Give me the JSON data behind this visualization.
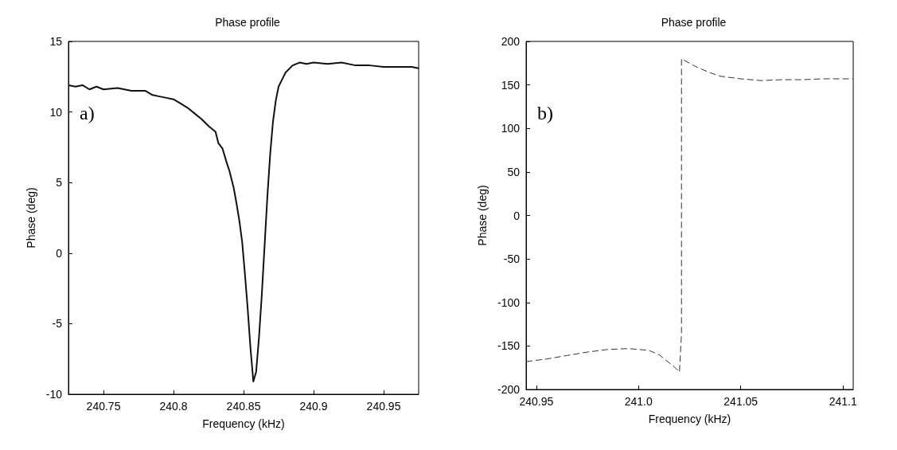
{
  "chart_data": [
    {
      "type": "line",
      "title": "Phase profile",
      "xlabel": "Frequency (kHz)",
      "ylabel": "Phase (deg)",
      "annotations": [
        "a)"
      ],
      "marker": "none",
      "line_style": "solid",
      "xlim": [
        240.725,
        240.975
      ],
      "xticks": [
        240.75,
        240.8,
        240.85,
        240.9,
        240.95
      ],
      "ylim": [
        -10,
        15
      ],
      "yticks": [
        -10,
        -5,
        0,
        5,
        10,
        15
      ],
      "series": [
        {
          "color": "#111111",
          "x": [
            240.725,
            240.73,
            240.735,
            240.74,
            240.745,
            240.75,
            240.76,
            240.77,
            240.78,
            240.785,
            240.79,
            240.795,
            240.8,
            240.805,
            240.81,
            240.815,
            240.82,
            240.825,
            240.83,
            240.832,
            240.835,
            240.838,
            240.84,
            240.843,
            240.845,
            240.847,
            240.849,
            240.851,
            240.853,
            240.855,
            240.857,
            240.859,
            240.861,
            240.863,
            240.865,
            240.867,
            240.869,
            240.871,
            240.873,
            240.875,
            240.878,
            240.88,
            240.885,
            240.89,
            240.895,
            240.9,
            240.91,
            240.92,
            240.93,
            240.94,
            240.95,
            240.96,
            240.97,
            240.975
          ],
          "values": [
            11.9,
            11.8,
            11.9,
            11.6,
            11.8,
            11.6,
            11.7,
            11.5,
            11.5,
            11.2,
            11.1,
            11.0,
            10.9,
            10.6,
            10.3,
            9.9,
            9.5,
            9.0,
            8.6,
            7.8,
            7.4,
            6.4,
            5.8,
            4.6,
            3.5,
            2.3,
            0.8,
            -1.5,
            -4.0,
            -6.8,
            -9.1,
            -8.4,
            -6.0,
            -3.0,
            0.5,
            4.0,
            7.0,
            9.3,
            10.8,
            11.8,
            12.4,
            12.8,
            13.3,
            13.5,
            13.4,
            13.5,
            13.4,
            13.5,
            13.3,
            13.3,
            13.2,
            13.2,
            13.2,
            13.1
          ]
        }
      ]
    },
    {
      "type": "line",
      "title": "Phase profile",
      "xlabel": "Frequency (kHz)",
      "ylabel": "Phase (deg)",
      "annotations": [
        "b)"
      ],
      "marker": "none",
      "line_style": "dashed",
      "xlim": [
        240.945,
        241.105
      ],
      "xticks": [
        240.95,
        {
          "value": 241,
          "label": "241.0"
        },
        241.05,
        241.1
      ],
      "ylim": [
        -200,
        200
      ],
      "yticks": [
        -200,
        -150,
        -100,
        -50,
        0,
        50,
        100,
        150,
        200
      ],
      "series": [
        {
          "color": "#333333",
          "x": [
            240.945,
            240.955,
            240.965,
            240.975,
            240.985,
            240.995,
            241.005,
            241.01,
            241.018,
            241.02,
            241.021,
            241.021,
            241.028,
            241.035,
            241.04,
            241.05,
            241.06,
            241.07,
            241.08,
            241.09,
            241.105
          ],
          "values": [
            -168,
            -165,
            -161,
            -157,
            -154,
            -153,
            -155,
            -160,
            -175,
            -180,
            -137,
            180,
            171,
            164,
            160,
            157,
            155,
            156,
            156,
            157,
            157
          ]
        }
      ]
    }
  ]
}
